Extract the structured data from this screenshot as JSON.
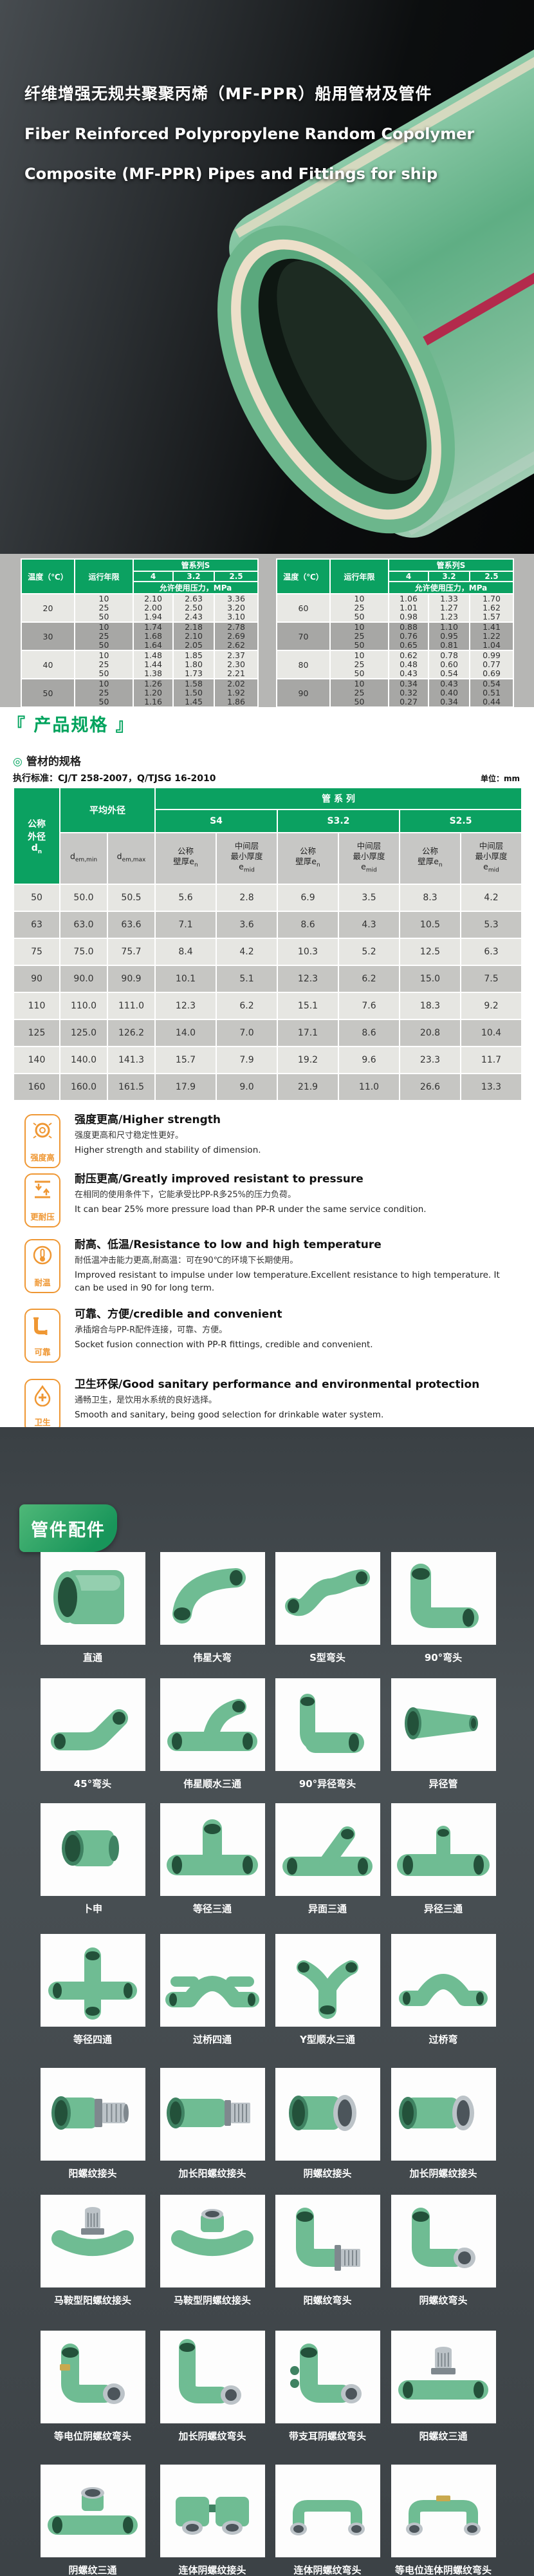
{
  "colors": {
    "accent_green": "#0ba161",
    "banner_green": "#18955a",
    "orange": "#ef9733",
    "dark_bg": "#42484c",
    "pipe_green": "#6fbc93"
  },
  "hero": {
    "title_cn": "纤维增强无规共聚聚丙烯（MF-PPR）船用管材及管件",
    "title_en1": "Fiber Reinforced Polypropylene Random Copolymer",
    "title_en2": "Composite (MF-PPR) Pipes and Fittings for ship",
    "pipe_photo": "green-mf-ppr-pipe-cross-section"
  },
  "pressure_tables": {
    "col_temp": "温度（℃）",
    "col_years": "运行年限",
    "col_series": "管系列S",
    "series": [
      "4",
      "3.2",
      "2.5"
    ],
    "pressure_label": "允许使用压力，MPa",
    "years": [
      "10",
      "25",
      "50"
    ],
    "left": [
      {
        "temp": "20",
        "s4": [
          "2.10",
          "2.00",
          "1.94"
        ],
        "s32": [
          "2.63",
          "2.50",
          "2.43"
        ],
        "s25": [
          "3.36",
          "3.20",
          "3.10"
        ]
      },
      {
        "temp": "30",
        "s4": [
          "1.74",
          "1.68",
          "1.64"
        ],
        "s32": [
          "2.18",
          "2.10",
          "2.05"
        ],
        "s25": [
          "2.78",
          "2.69",
          "2.62"
        ]
      },
      {
        "temp": "40",
        "s4": [
          "1.48",
          "1.44",
          "1.38"
        ],
        "s32": [
          "1.85",
          "1.80",
          "1.73"
        ],
        "s25": [
          "2.37",
          "2.30",
          "2.21"
        ]
      },
      {
        "temp": "50",
        "s4": [
          "1.26",
          "1.20",
          "1.16"
        ],
        "s32": [
          "1.58",
          "1.50",
          "1.45"
        ],
        "s25": [
          "2.02",
          "1.92",
          "1.86"
        ]
      }
    ],
    "right": [
      {
        "temp": "60",
        "s4": [
          "1.06",
          "1.01",
          "0.98"
        ],
        "s32": [
          "1.33",
          "1.27",
          "1.23"
        ],
        "s25": [
          "1.70",
          "1.62",
          "1.57"
        ]
      },
      {
        "temp": "70",
        "s4": [
          "0.88",
          "0.76",
          "0.65"
        ],
        "s32": [
          "1.10",
          "0.95",
          "0.81"
        ],
        "s25": [
          "1.41",
          "1.22",
          "1.04"
        ]
      },
      {
        "temp": "80",
        "s4": [
          "0.62",
          "0.48",
          "0.43"
        ],
        "s32": [
          "0.78",
          "0.60",
          "0.54"
        ],
        "s25": [
          "0.99",
          "0.77",
          "0.69"
        ]
      },
      {
        "temp": "90",
        "s4": [
          "0.34",
          "0.32",
          "0.27"
        ],
        "s32": [
          "0.43",
          "0.40",
          "0.34"
        ],
        "s25": [
          "0.54",
          "0.51",
          "0.44"
        ]
      }
    ]
  },
  "spec_section": {
    "title": "『 产品规格 』",
    "sub_marker": "◎",
    "subtitle": "管材的规格",
    "standard": "执行标准：CJ/T 258-2007，Q/TJSG 16-2010",
    "unit": "单位：mm",
    "table": {
      "h_dn_lines": [
        "公称",
        "外径"
      ],
      "h_dn_base": "d",
      "h_dn_sub": "n",
      "h_avg": "平均外径",
      "h_davg": [
        {
          "base": "d",
          "sub": "em,min"
        },
        {
          "base": "d",
          "sub": "em,max"
        }
      ],
      "h_series": "管 系 列",
      "series": [
        "S4",
        "S3.2",
        "S2.5"
      ],
      "h_wall": {
        "lines": [
          "公称",
          "壁厚"
        ],
        "base": "e",
        "sub": "n"
      },
      "h_mid": {
        "lines": [
          "中间层",
          "最小厚度"
        ],
        "base": "e",
        "sub": "mid"
      },
      "rows": [
        {
          "dn": "50",
          "vals": [
            "50.0",
            "50.5",
            "5.6",
            "2.8",
            "6.9",
            "3.5",
            "8.3",
            "4.2"
          ]
        },
        {
          "dn": "63",
          "vals": [
            "63.0",
            "63.6",
            "7.1",
            "3.6",
            "8.6",
            "4.3",
            "10.5",
            "5.3"
          ]
        },
        {
          "dn": "75",
          "vals": [
            "75.0",
            "75.7",
            "8.4",
            "4.2",
            "10.3",
            "5.2",
            "12.5",
            "6.3"
          ]
        },
        {
          "dn": "90",
          "vals": [
            "90.0",
            "90.9",
            "10.1",
            "5.1",
            "12.3",
            "6.2",
            "15.0",
            "7.5"
          ]
        },
        {
          "dn": "110",
          "vals": [
            "110.0",
            "111.0",
            "12.3",
            "6.2",
            "15.1",
            "7.6",
            "18.3",
            "9.2"
          ]
        },
        {
          "dn": "125",
          "vals": [
            "125.0",
            "126.2",
            "14.0",
            "7.0",
            "17.1",
            "8.6",
            "20.8",
            "10.4"
          ]
        },
        {
          "dn": "140",
          "vals": [
            "140.0",
            "141.3",
            "15.7",
            "7.9",
            "19.2",
            "9.6",
            "23.3",
            "11.7"
          ]
        },
        {
          "dn": "160",
          "vals": [
            "160.0",
            "161.5",
            "17.9",
            "9.0",
            "21.9",
            "11.0",
            "26.6",
            "13.3"
          ]
        }
      ]
    }
  },
  "features": [
    {
      "badge": "强度高",
      "icon": "pipe-ring-icon",
      "title": "强度更高/Higher strength",
      "cn": "强度更高和尺寸稳定性更好。",
      "en": "Higher strength and stability of dimension."
    },
    {
      "badge": "更耐压",
      "icon": "pressure-arrows-icon",
      "title": "耐压更高/Greatly improved resistant to pressure",
      "cn": "在相同的使用条件下，它能承受比PP-R多25%的压力负荷。",
      "en": "It can bear 25% more pressure load than PP-R under the same service condition."
    },
    {
      "badge": "耐温",
      "icon": "thermometer-icon",
      "title": "耐高、低温/Resistance to low and high temperature",
      "cn": "耐低温冲击能力更高,耐高温：可在90℃的环境下长期使用。",
      "en": "Improved resistant to impulse under low temperature.Excellent resistance to high temperature. It can be used in 90 for long term."
    },
    {
      "badge": "可靠",
      "icon": "pipe-elbow-icon",
      "title": "可靠、方便/credible and convenient",
      "cn": "承插熔合与PP-R配件连接，可靠、方便。",
      "en": "Socket fusion connection with PP-R fittings, credible and convenient."
    },
    {
      "badge": "卫生",
      "icon": "droplet-icon",
      "title": "卫生环保/Good sanitary performance and environmental protection",
      "cn": "通畅卫生，是饮用水系统的良好选择。",
      "en": "Smooth and sanitary, being good selection for drinkable water system."
    }
  ],
  "fittings": {
    "banner": "管件配件",
    "items": [
      {
        "label": "直通",
        "shape": "coupler"
      },
      {
        "label": "伟星大弯",
        "shape": "bigbend"
      },
      {
        "label": "S型弯头",
        "shape": "sbend"
      },
      {
        "label": "90°弯头",
        "shape": "elbow90"
      },
      {
        "label": "45°弯头",
        "shape": "elbow45"
      },
      {
        "label": "伟星顺水三通",
        "shape": "sweeptee"
      },
      {
        "label": "90°异径弯头",
        "shape": "elbow90r"
      },
      {
        "label": "异径管",
        "shape": "reducer"
      },
      {
        "label": "卜申",
        "shape": "bushing"
      },
      {
        "label": "等径三通",
        "shape": "tee"
      },
      {
        "label": "异面三通",
        "shape": "tee3d"
      },
      {
        "label": "异径三通",
        "shape": "teer"
      },
      {
        "label": "等径四通",
        "shape": "cross"
      },
      {
        "label": "过桥四通",
        "shape": "bridgecross"
      },
      {
        "label": "Y型顺水三通",
        "shape": "ytee"
      },
      {
        "label": "过桥弯",
        "shape": "bridge"
      },
      {
        "label": "阳螺纹接头",
        "shape": "adapterM"
      },
      {
        "label": "加长阳螺纹接头",
        "shape": "adapterMlong"
      },
      {
        "label": "阴螺纹接头",
        "shape": "adapterF"
      },
      {
        "label": "加长阴螺纹接头",
        "shape": "adapterFlong"
      },
      {
        "label": "马鞍型阳螺纹接头",
        "shape": "saddleM"
      },
      {
        "label": "马鞍型阴螺纹接头",
        "shape": "saddleF"
      },
      {
        "label": "阳螺纹弯头",
        "shape": "elbowM"
      },
      {
        "label": "阴螺纹弯头",
        "shape": "elbowF"
      },
      {
        "label": "等电位阴螺纹弯头",
        "shape": "elbowFeq"
      },
      {
        "label": "加长阴螺纹弯头",
        "shape": "elbowFlong"
      },
      {
        "label": "带支耳阴螺纹弯头",
        "shape": "elbowFear"
      },
      {
        "label": "阳螺纹三通",
        "shape": "teeM"
      },
      {
        "label": "阴螺纹三通",
        "shape": "teeF"
      },
      {
        "label": "连体阴螺纹接头",
        "shape": "unionF"
      },
      {
        "label": "连体阴螺纹弯头",
        "shape": "unionElbow"
      },
      {
        "label": "等电位连体阴螺纹弯头",
        "shape": "unionElbowEq"
      }
    ]
  }
}
